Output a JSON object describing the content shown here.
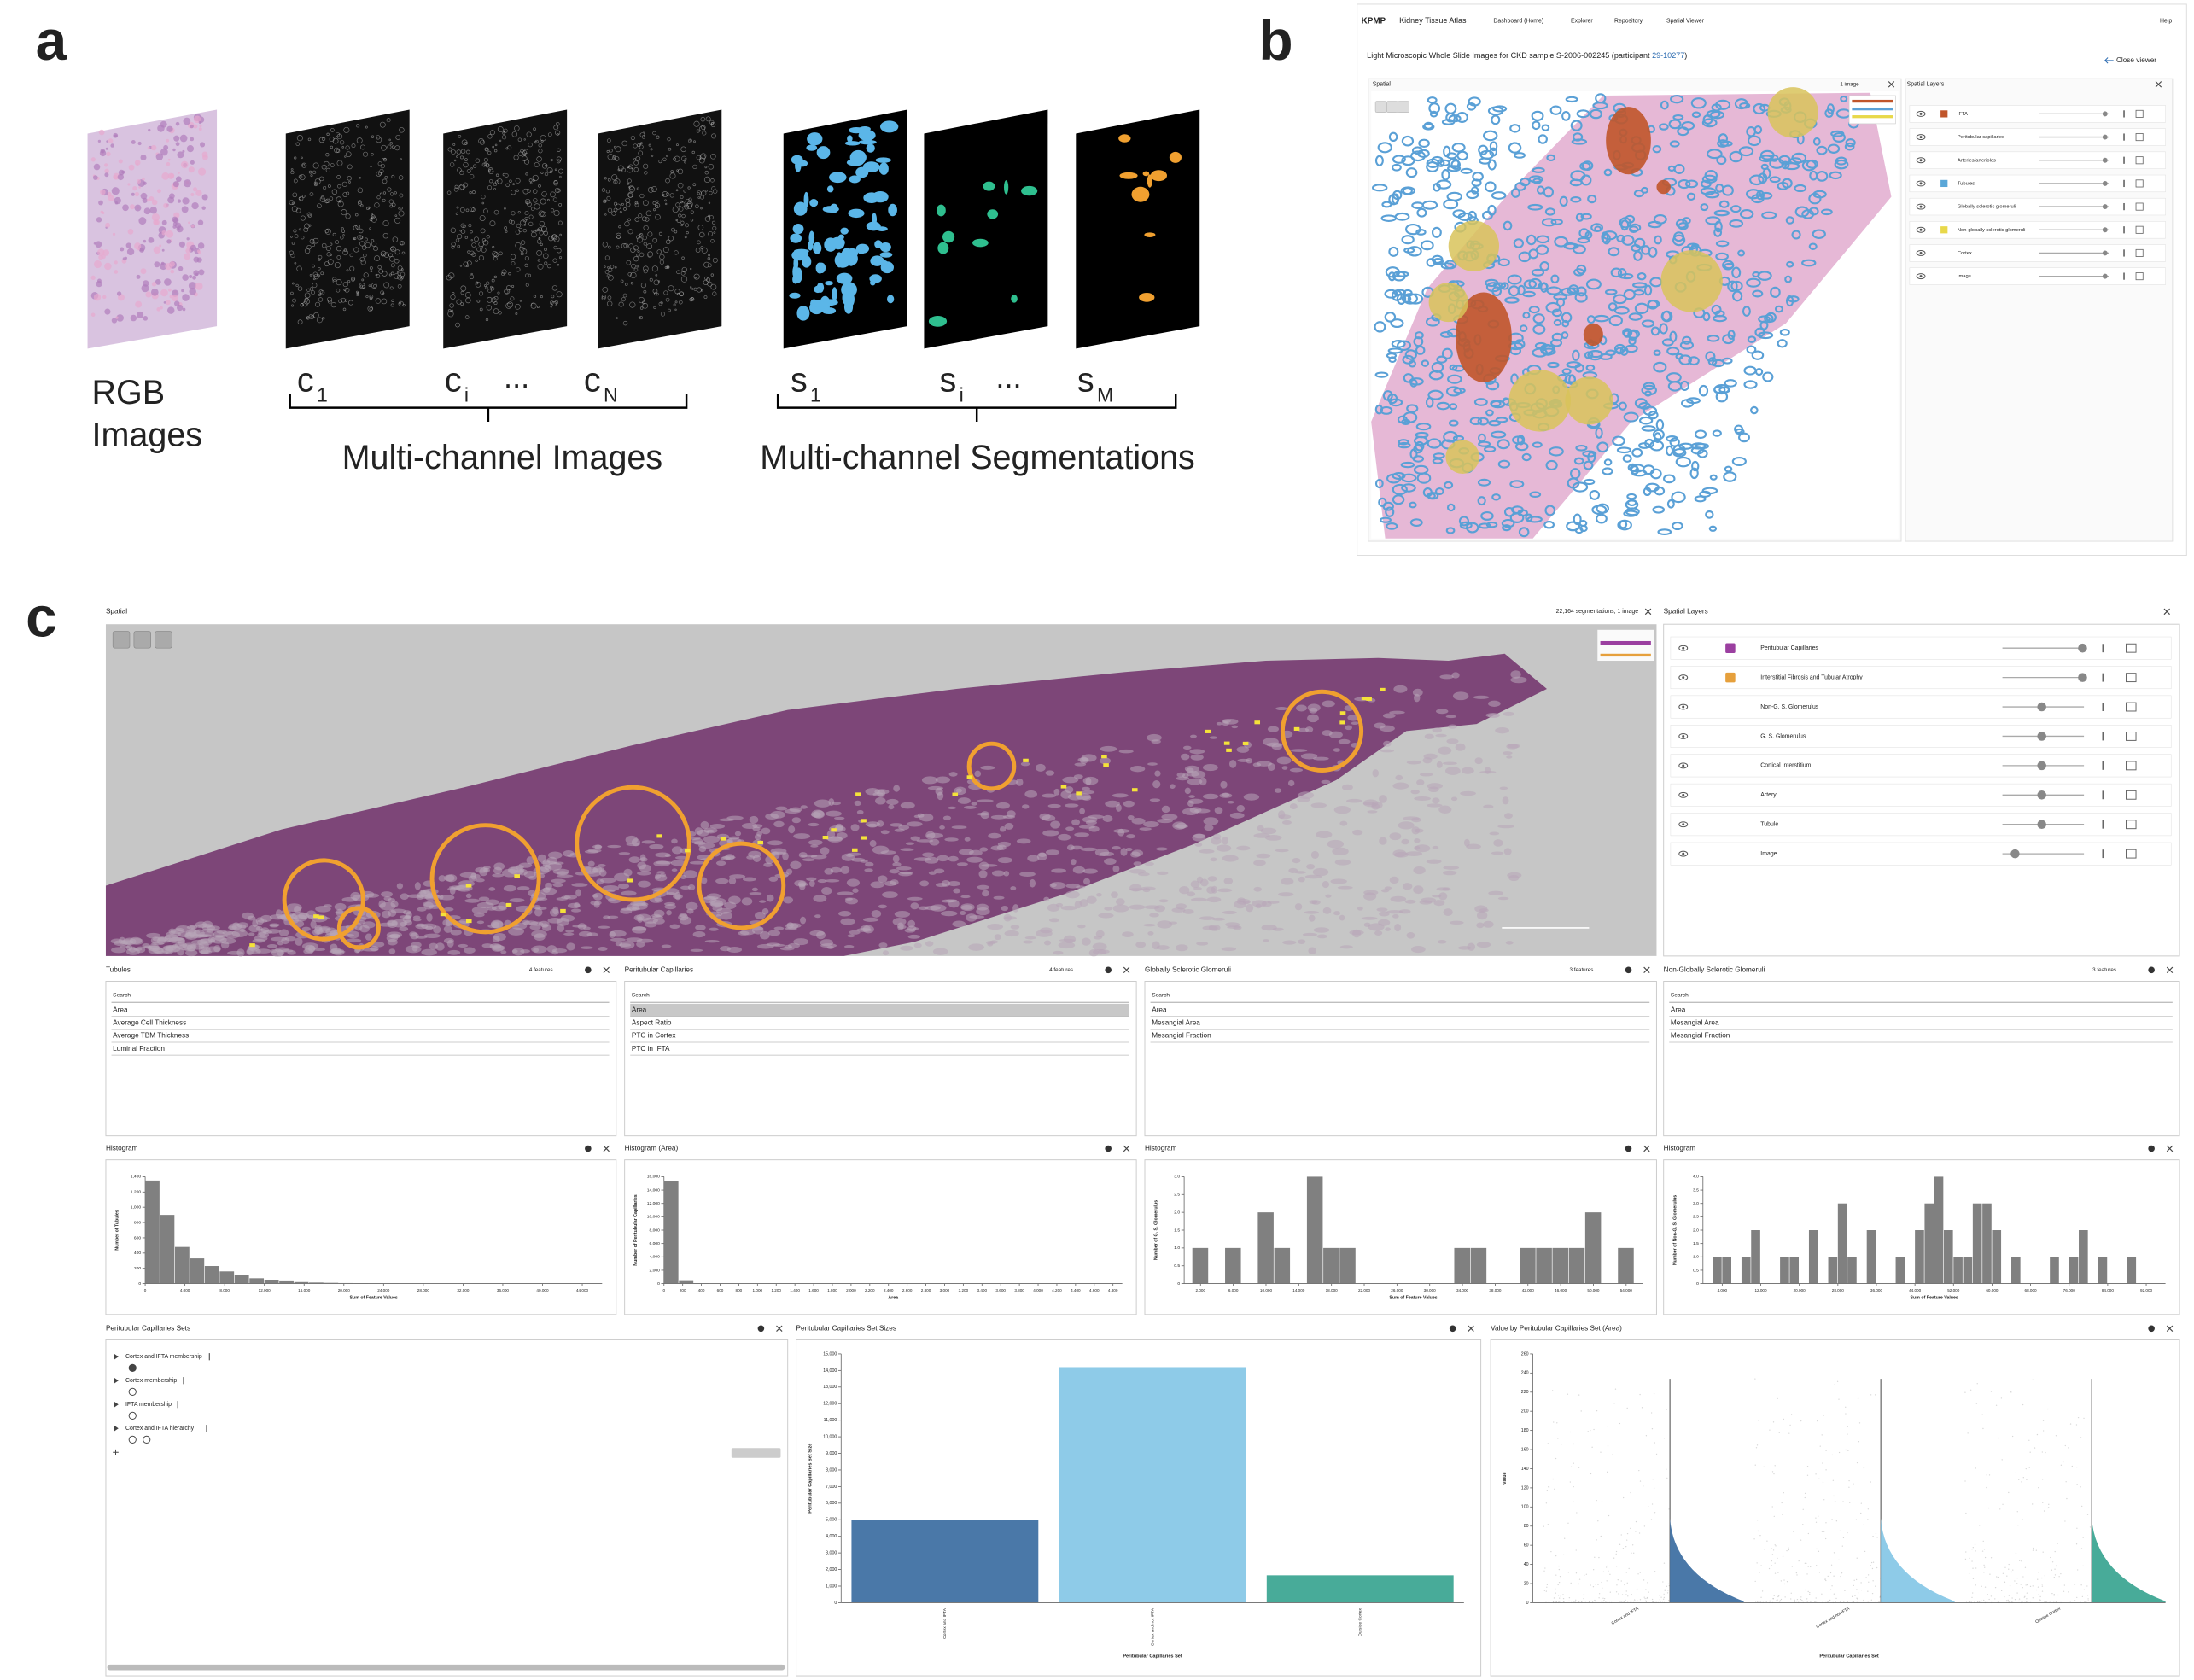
{
  "panel_a": {
    "label": "a",
    "rgb": [
      "RGB",
      "Images"
    ],
    "channels": [
      {
        "base": "c",
        "sub": "1"
      },
      {
        "base": "c",
        "sub": "i"
      },
      {
        "base": "c",
        "sub": "N"
      }
    ],
    "segmentations": [
      {
        "base": "s",
        "sub": "1"
      },
      {
        "base": "s",
        "sub": "i"
      },
      {
        "base": "s",
        "sub": "M"
      }
    ],
    "ellipsis": "...",
    "channel_group": "Multi-channel Images",
    "segmentation_group": "Multi-channel Segmentations"
  },
  "panel_b": {
    "label": "b",
    "logo": "KPMP",
    "site": "Kidney Tissue Atlas",
    "nav": [
      "Dashboard (Home)",
      "Explorer",
      "Repository",
      "Spatial Viewer"
    ],
    "help": "Help",
    "title_prefix": "Light Microscopic Whole Slide Images for CKD sample S-2006-002245 (participant ",
    "participant": "29-10277",
    "title_suffix": ")",
    "close": "Close viewer",
    "spatial": "Spatial",
    "image_count": "1 image",
    "layers_title": "Spatial Layers",
    "layers": [
      {
        "name": "IFTA",
        "color": "#c0552a"
      },
      {
        "name": "Peritubular capillaries"
      },
      {
        "name": "Arteries/arterioles"
      },
      {
        "name": "Tubules",
        "color": "#5aa7d8"
      },
      {
        "name": "Globally sclerotic glomeruli"
      },
      {
        "name": "Non-globally sclerotic glomeruli",
        "color": "#e8d84a"
      },
      {
        "name": "Cortex"
      },
      {
        "name": "Image"
      }
    ]
  },
  "panel_c": {
    "label": "c",
    "spatial": "Spatial",
    "counts": "22,164 segmentations, 1 image",
    "layers_title": "Spatial Layers",
    "layers": [
      {
        "name": "Peritubular Capillaries",
        "color": "#9b3fa0"
      },
      {
        "name": "Interstitial Fibrosis and Tubular Atrophy",
        "color": "#e6a03c"
      },
      {
        "name": "Non-G. S. Glomerulus"
      },
      {
        "name": "G. S. Glomerulus"
      },
      {
        "name": "Cortical Interstitium"
      },
      {
        "name": "Artery"
      },
      {
        "name": "Tubule"
      },
      {
        "name": "Image"
      }
    ],
    "feature_lists": [
      {
        "title": "Tubules",
        "count": "4 features",
        "search": "Search",
        "features": [
          "Area",
          "Average Cell Thickness",
          "Average TBM Thickness",
          "Luminal Fraction"
        ]
      },
      {
        "title": "Peritubular Capillaries",
        "count": "4 features",
        "search": "Search",
        "features": [
          "Area",
          "Aspect Ratio",
          "PTC in Cortex",
          "PTC in IFTA"
        ]
      },
      {
        "title": "Globally Sclerotic Glomeruli",
        "count": "3 features",
        "search": "Search",
        "features": [
          "Area",
          "Mesangial Area",
          "Mesangial Fraction"
        ]
      },
      {
        "title": "Non-Globally Sclerotic Glomeruli",
        "count": "3 features",
        "search": "Search",
        "features": [
          "Area",
          "Mesangial Area",
          "Mesangial Fraction"
        ]
      }
    ],
    "sets": {
      "title": "Peritubular Capillaries Sets",
      "items": [
        "Cortex and IFTA membership",
        "Cortex membership",
        "IFTA membership",
        "Cortex and IFTA hierarchy"
      ]
    }
  },
  "chart_data": [
    {
      "type": "histogram",
      "title": "Histogram",
      "x_label": "Sum of Feature Values",
      "y_label": "Number of Tubules",
      "color": "#808080",
      "bins": [
        0,
        1500,
        3000,
        4500,
        6000,
        7500,
        9000,
        10500,
        12000,
        13500,
        15000,
        16500,
        18000,
        19500,
        21000,
        22500,
        24000,
        25500,
        27000,
        28500,
        30000,
        31500,
        33000,
        34500,
        36000,
        37500,
        39000,
        40500,
        42000,
        43500,
        45000
      ],
      "values": [
        1350,
        900,
        480,
        330,
        230,
        160,
        110,
        70,
        45,
        30,
        20,
        14,
        10,
        7,
        5,
        4,
        3,
        2,
        2,
        1,
        1,
        1,
        0,
        0,
        0,
        0,
        0,
        0,
        0,
        0
      ],
      "xlim": [
        0,
        46000
      ],
      "ylim": [
        0,
        1400
      ],
      "xticks": [
        0,
        {
          "value": 4000,
          "label": "4,000"
        },
        {
          "value": 8000,
          "label": "8,000"
        },
        {
          "value": 12000,
          "label": "12,000"
        },
        {
          "value": 16000,
          "label": "16,000"
        },
        {
          "value": 20000,
          "label": "20,000"
        },
        {
          "value": 24000,
          "label": "24,000"
        },
        {
          "value": 28000,
          "label": "28,000"
        },
        {
          "value": 32000,
          "label": "32,000"
        },
        {
          "value": 36000,
          "label": "36,000"
        },
        {
          "value": 40000,
          "label": "40,000"
        },
        {
          "value": 44000,
          "label": "44,000"
        }
      ],
      "yticks": [
        0,
        200,
        400,
        600,
        800,
        {
          "value": 1000,
          "label": "1,000"
        },
        {
          "value": 1200,
          "label": "1,200"
        },
        {
          "value": 1400,
          "label": "1,400"
        }
      ]
    },
    {
      "type": "histogram",
      "title": "Histogram (Area)",
      "x_label": "Area",
      "y_label": "Number of Peritubular Capillaries",
      "color": "#808080",
      "bins": [
        0,
        160,
        320,
        480,
        640,
        800,
        960,
        1120,
        1280,
        1440,
        1600,
        1760,
        1920,
        2080,
        2240,
        2400,
        2560,
        2720,
        2880,
        3040,
        3200,
        3360,
        3520,
        3680,
        3840,
        4000,
        4160,
        4320,
        4480,
        4640,
        4800
      ],
      "values": [
        15400,
        380,
        60,
        20,
        8,
        5,
        3,
        2,
        2,
        1,
        1,
        0,
        0,
        0,
        0,
        0,
        0,
        0,
        0,
        0,
        0,
        0,
        0,
        0,
        0,
        0,
        0,
        0,
        0,
        0
      ],
      "xlim": [
        0,
        4900
      ],
      "ylim": [
        0,
        16000
      ],
      "xticks": [
        0,
        200,
        400,
        600,
        800,
        {
          "value": 1000,
          "label": "1,000"
        },
        {
          "value": 1200,
          "label": "1,200"
        },
        {
          "value": 1400,
          "label": "1,400"
        },
        {
          "value": 1600,
          "label": "1,600"
        },
        {
          "value": 1800,
          "label": "1,800"
        },
        {
          "value": 2000,
          "label": "2,000"
        },
        {
          "value": 2200,
          "label": "2,200"
        },
        {
          "value": 2400,
          "label": "2,400"
        },
        {
          "value": 2600,
          "label": "2,600"
        },
        {
          "value": 2800,
          "label": "2,800"
        },
        {
          "value": 3000,
          "label": "3,000"
        },
        {
          "value": 3200,
          "label": "3,200"
        },
        {
          "value": 3400,
          "label": "3,400"
        },
        {
          "value": 3600,
          "label": "3,600"
        },
        {
          "value": 3800,
          "label": "3,800"
        },
        {
          "value": 4000,
          "label": "4,000"
        },
        {
          "value": 4200,
          "label": "4,200"
        },
        {
          "value": 4400,
          "label": "4,400"
        },
        {
          "value": 4600,
          "label": "4,600"
        },
        {
          "value": 4800,
          "label": "4,800"
        }
      ],
      "yticks": [
        0,
        {
          "value": 2000,
          "label": "2,000"
        },
        {
          "value": 4000,
          "label": "4,000"
        },
        {
          "value": 6000,
          "label": "6,000"
        },
        {
          "value": 8000,
          "label": "8,000"
        },
        {
          "value": 10000,
          "label": "10,000"
        },
        {
          "value": 12000,
          "label": "12,000"
        },
        {
          "value": 14000,
          "label": "14,000"
        },
        {
          "value": 16000,
          "label": "16,000"
        }
      ]
    },
    {
      "type": "histogram",
      "title": "Histogram",
      "x_label": "Sum of Feature Values",
      "y_label": "Number of G. S. Glomerulus",
      "color": "#808080",
      "bins": [
        1000,
        3000,
        5000,
        7000,
        9000,
        11000,
        13000,
        15000,
        17000,
        19000,
        21000,
        23000,
        25000,
        27000,
        29000,
        31000,
        33000,
        35000,
        37000,
        39000,
        41000,
        43000,
        45000,
        47000,
        49000,
        51000,
        53000,
        55000
      ],
      "values": [
        1,
        0,
        1,
        0,
        2,
        1,
        0,
        3,
        1,
        1,
        0,
        0,
        0,
        0,
        0,
        0,
        1,
        1,
        0,
        0,
        1,
        1,
        1,
        1,
        2,
        0,
        1
      ],
      "xlim": [
        0,
        56000
      ],
      "ylim": [
        0,
        3
      ],
      "xticks": [
        {
          "value": 2000,
          "label": "2,000"
        },
        {
          "value": 6000,
          "label": "6,000"
        },
        {
          "value": 10000,
          "label": "10,000"
        },
        {
          "value": 14000,
          "label": "14,000"
        },
        {
          "value": 18000,
          "label": "18,000"
        },
        {
          "value": 22000,
          "label": "22,000"
        },
        {
          "value": 26000,
          "label": "26,000"
        },
        {
          "value": 30000,
          "label": "30,000"
        },
        {
          "value": 34000,
          "label": "34,000"
        },
        {
          "value": 38000,
          "label": "38,000"
        },
        {
          "value": 42000,
          "label": "42,000"
        },
        {
          "value": 46000,
          "label": "46,000"
        },
        {
          "value": 50000,
          "label": "50,000"
        },
        {
          "value": 54000,
          "label": "54,000"
        }
      ],
      "yticks": [
        0,
        0.5,
        {
          "value": 1,
          "label": "1.0"
        },
        1.5,
        {
          "value": 2,
          "label": "2.0"
        },
        2.5,
        {
          "value": 3,
          "label": "3.0"
        }
      ]
    },
    {
      "type": "histogram",
      "title": "Histogram",
      "x_label": "Sum of Feature Values",
      "y_label": "Number of Non-G. S. Glomerulus",
      "color": "#808080",
      "bins": [
        2000,
        4000,
        6000,
        8000,
        10000,
        12000,
        14000,
        16000,
        18000,
        20000,
        22000,
        24000,
        26000,
        28000,
        30000,
        32000,
        34000,
        36000,
        38000,
        40000,
        42000,
        44000,
        46000,
        48000,
        50000,
        52000,
        54000,
        56000,
        58000,
        60000,
        62000,
        64000,
        66000,
        68000,
        70000,
        72000,
        74000,
        76000,
        78000,
        80000,
        82000,
        84000,
        86000,
        88000,
        90000,
        92000
      ],
      "values": [
        1,
        1,
        0,
        1,
        2,
        0,
        0,
        1,
        1,
        0,
        2,
        0,
        1,
        3,
        1,
        0,
        2,
        0,
        0,
        1,
        0,
        2,
        3,
        4,
        2,
        1,
        1,
        3,
        3,
        2,
        0,
        1,
        0,
        0,
        0,
        1,
        0,
        1,
        2,
        0,
        1,
        0,
        0,
        1,
        0
      ],
      "xlim": [
        0,
        96000
      ],
      "ylim": [
        0,
        4
      ],
      "xticks": [
        {
          "value": 4000,
          "label": "4,000"
        },
        {
          "value": 12000,
          "label": "12,000"
        },
        {
          "value": 20000,
          "label": "20,000"
        },
        {
          "value": 28000,
          "label": "28,000"
        },
        {
          "value": 36000,
          "label": "36,000"
        },
        {
          "value": 44000,
          "label": "44,000"
        },
        {
          "value": 52000,
          "label": "52,000"
        },
        {
          "value": 60000,
          "label": "60,000"
        },
        {
          "value": 68000,
          "label": "68,000"
        },
        {
          "value": 76000,
          "label": "76,000"
        },
        {
          "value": 84000,
          "label": "84,000"
        },
        {
          "value": 92000,
          "label": "92,000"
        }
      ],
      "yticks": [
        0,
        0.5,
        {
          "value": 1,
          "label": "1.0"
        },
        1.5,
        {
          "value": 2,
          "label": "2.0"
        },
        2.5,
        {
          "value": 3,
          "label": "3.0"
        },
        3.5,
        {
          "value": 4,
          "label": "4.0"
        }
      ]
    },
    {
      "type": "bar",
      "title": "Peritubular Capillaries Set Sizes",
      "x_label": "Peritubular Capillaries Set",
      "y_label": "Peritubular Capillaries Set Size",
      "categories": [
        "Cortex and IFTA",
        "Cortex and not IFTA",
        "Outside Cortex"
      ],
      "values": [
        5000,
        14200,
        1650
      ],
      "colors": [
        "#4a78a8",
        "#8ecbe8",
        "#48ab99"
      ],
      "ylim": [
        0,
        15000
      ],
      "yticks": [
        0,
        {
          "value": 1000,
          "label": "1,000"
        },
        {
          "value": 2000,
          "label": "2,000"
        },
        {
          "value": 3000,
          "label": "3,000"
        },
        {
          "value": 4000,
          "label": "4,000"
        },
        {
          "value": 5000,
          "label": "5,000"
        },
        {
          "value": 6000,
          "label": "6,000"
        },
        {
          "value": 7000,
          "label": "7,000"
        },
        {
          "value": 8000,
          "label": "8,000"
        },
        {
          "value": 9000,
          "label": "9,000"
        },
        {
          "value": 10000,
          "label": "10,000"
        },
        {
          "value": 11000,
          "label": "11,000"
        },
        {
          "value": 12000,
          "label": "12,000"
        },
        {
          "value": 13000,
          "label": "13,000"
        },
        {
          "value": 14000,
          "label": "14,000"
        },
        {
          "value": 15000,
          "label": "15,000"
        }
      ]
    },
    {
      "type": "violin",
      "title": "Value by Peritubular Capillaries Set (Area)",
      "x_label": "Peritubular Capillaries Set",
      "y_label": "Value",
      "categories": [
        "Cortex and IFTA",
        "Cortex and not IFTA",
        "Outside Cortex"
      ],
      "colors": [
        "#4a78a8",
        "#8ecbe8",
        "#48ab99"
      ],
      "ylim": [
        0,
        260
      ],
      "yticks": [
        0,
        20,
        40,
        60,
        80,
        100,
        120,
        140,
        160,
        180,
        200,
        220,
        240,
        260
      ]
    }
  ]
}
